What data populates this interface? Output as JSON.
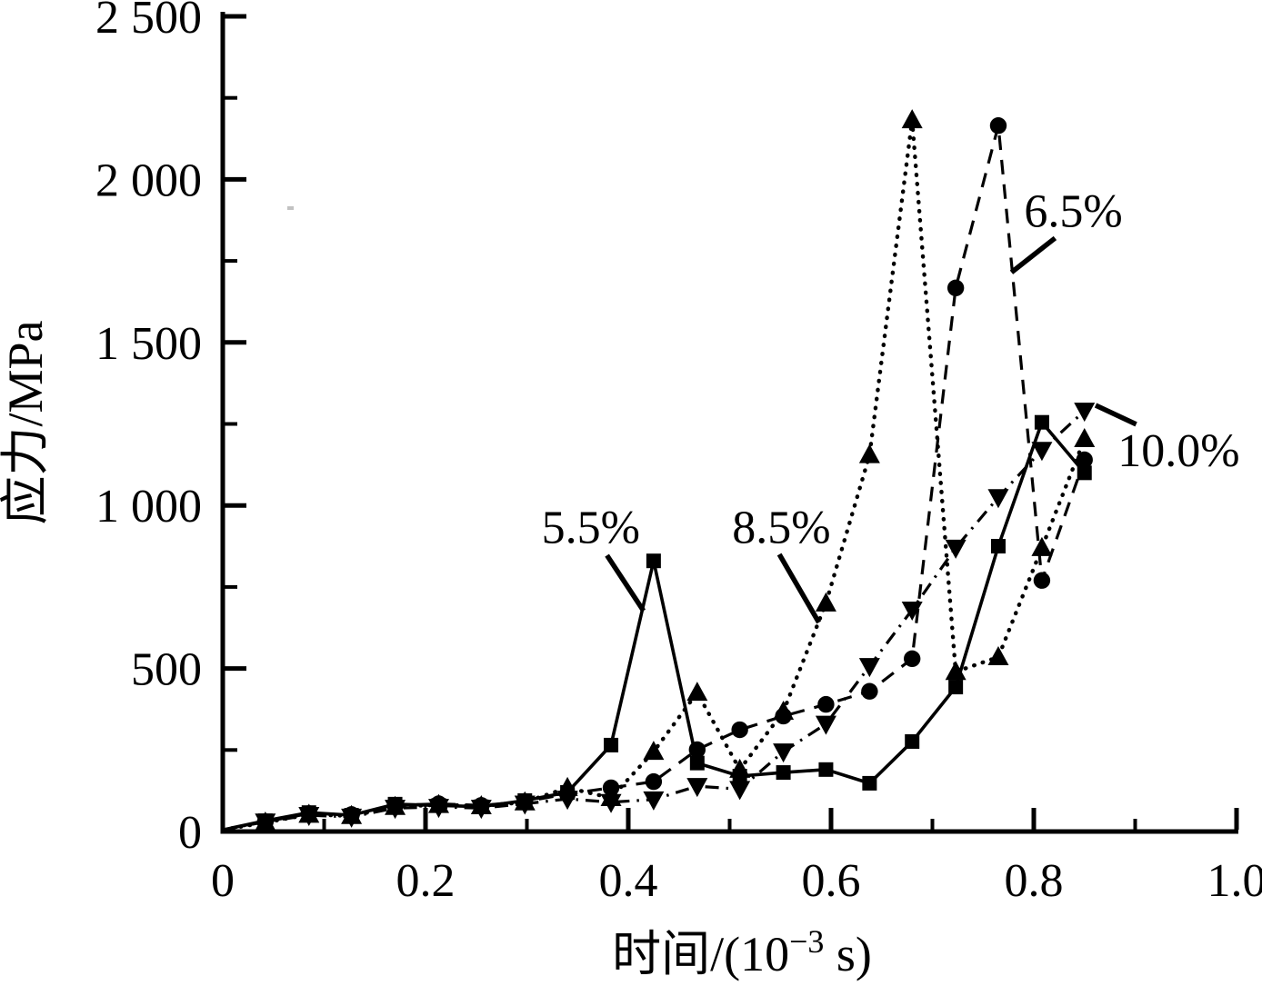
{
  "figure": {
    "background": "#ffffff",
    "ink_color": "#000000"
  },
  "chart_data": {
    "type": "line",
    "title": "",
    "xlabel_plain": "时间/(10⁻³ s)",
    "xlabel_parts": {
      "prefix": "时间/(10",
      "superscript": "−3",
      "suffix": " s)"
    },
    "ylabel": "应力/MPa",
    "xlim": [
      0,
      1.0
    ],
    "ylim": [
      0,
      2500
    ],
    "grid": false,
    "legend_position": "inline-annotations",
    "x_major_ticks": [
      {
        "value": 0.0,
        "label": "0"
      },
      {
        "value": 0.2,
        "label": "0.2"
      },
      {
        "value": 0.4,
        "label": "0.4"
      },
      {
        "value": 0.6,
        "label": "0.6"
      },
      {
        "value": 0.8,
        "label": "0.8"
      },
      {
        "value": 1.0,
        "label": "1.0"
      }
    ],
    "x_minor_ticks": [
      0.1,
      0.3,
      0.5,
      0.7,
      0.9
    ],
    "y_major_ticks": [
      {
        "value": 0,
        "label": "0"
      },
      {
        "value": 500,
        "label": "500"
      },
      {
        "value": 1000,
        "label": "1 000"
      },
      {
        "value": 1500,
        "label": "1 500"
      },
      {
        "value": 2000,
        "label": "2 000"
      },
      {
        "value": 2500,
        "label": "2 500"
      }
    ],
    "y_minor_ticks": [
      250,
      750,
      1250,
      1750,
      2250
    ],
    "x": [
      0,
      0.042,
      0.085,
      0.127,
      0.17,
      0.213,
      0.255,
      0.298,
      0.34,
      0.383,
      0.425,
      0.468,
      0.51,
      0.553,
      0.595,
      0.638,
      0.68,
      0.723,
      0.765,
      0.808,
      0.85
    ],
    "series": [
      {
        "name": "5.5%",
        "marker": "square",
        "line": "solid",
        "color": "#000000",
        "values": [
          5,
          33,
          58,
          50,
          84,
          80,
          76,
          95,
          120,
          265,
          830,
          210,
          170,
          181,
          190,
          148,
          276,
          443,
          875,
          1255,
          1100
        ],
        "annotation": {
          "text": "5.5%",
          "x": 0.363,
          "y": 935,
          "leader": [
            [
              0.379,
              847
            ],
            [
              0.415,
              677
            ]
          ]
        }
      },
      {
        "name": "6.5%",
        "marker": "circle",
        "line": "dashed",
        "color": "#000000",
        "values": [
          5,
          30,
          55,
          52,
          80,
          85,
          80,
          92,
          115,
          134,
          153,
          251,
          312,
          354,
          390,
          430,
          530,
          1667,
          2165,
          770,
          1140
        ],
        "annotation": {
          "text": "6.5%",
          "x": 0.839,
          "y": 1905,
          "leader": [
            [
              0.821,
              1820
            ],
            [
              0.778,
              1715
            ]
          ]
        }
      },
      {
        "name": "8.5%",
        "marker": "triangle-up",
        "line": "dotted",
        "color": "#000000",
        "values": [
          5,
          28,
          52,
          48,
          76,
          82,
          78,
          90,
          134,
          103,
          245,
          426,
          190,
          368,
          700,
          1155,
          2182,
          490,
          535,
          870,
          1204
        ],
        "annotation": {
          "text": "8.5%",
          "x": 0.551,
          "y": 935,
          "leader": [
            [
              0.549,
              850
            ],
            [
              0.588,
              641
            ]
          ]
        }
      },
      {
        "name": "10.0%",
        "marker": "triangle-down",
        "line": "dash-dot",
        "color": "#000000",
        "values": [
          5,
          30,
          50,
          45,
          72,
          75,
          72,
          85,
          100,
          90,
          98,
          139,
          130,
          245,
          330,
          507,
          680,
          870,
          1025,
          1170,
          1290
        ],
        "annotation": {
          "text": "10.0%",
          "x": 0.943,
          "y": 1170,
          "leader": [
            [
              0.901,
              1249
            ],
            [
              0.861,
              1307
            ]
          ]
        }
      }
    ]
  }
}
